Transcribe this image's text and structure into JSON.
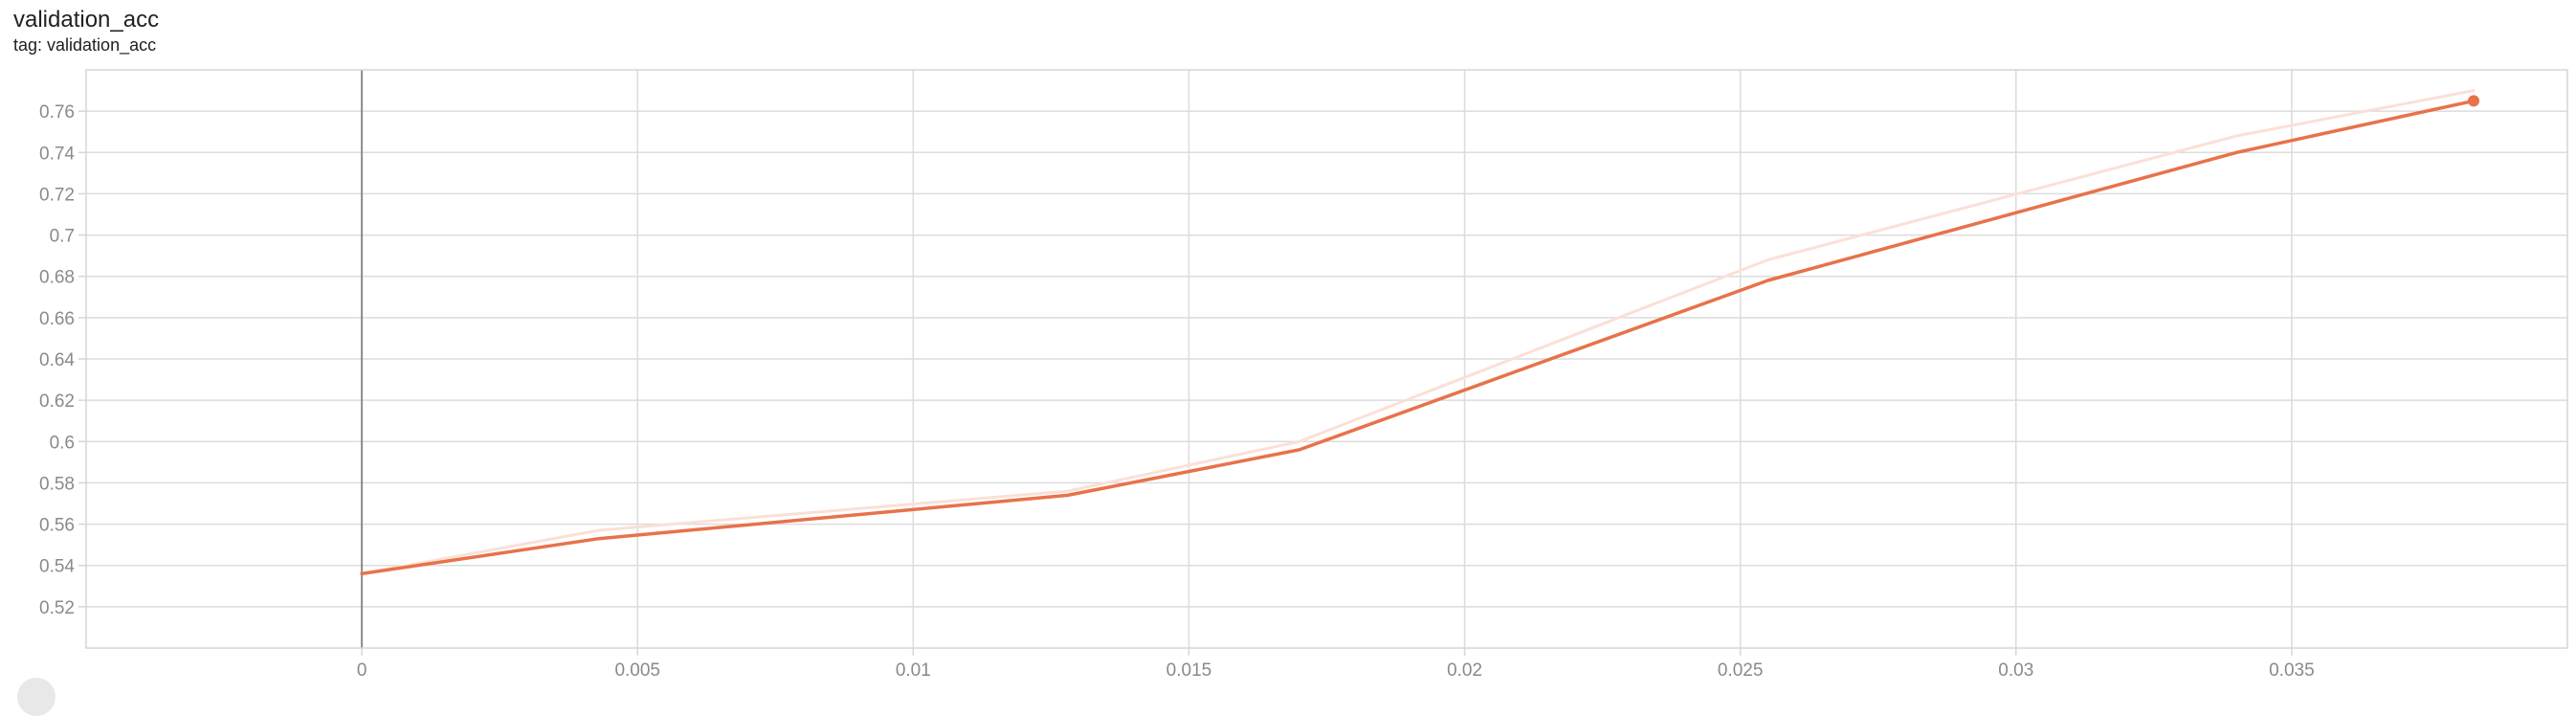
{
  "header": {
    "title": "validation_acc",
    "tag": "tag: validation_acc"
  },
  "chart_data": {
    "type": "line",
    "title": "validation_acc",
    "subtitle": "tag: validation_acc",
    "xlabel": "",
    "ylabel": "",
    "xlim": [
      -0.005,
      0.04
    ],
    "ylim": [
      0.5,
      0.78
    ],
    "x_ticks": [
      "0",
      "0.005",
      "0.01",
      "0.015",
      "0.02",
      "0.025",
      "0.03",
      "0.035"
    ],
    "y_ticks": [
      "0.52",
      "0.54",
      "0.56",
      "0.58",
      "0.6",
      "0.62",
      "0.64",
      "0.66",
      "0.68",
      "0.7",
      "0.72",
      "0.74",
      "0.76"
    ],
    "grid": true,
    "series": [
      {
        "role": "raw",
        "color": "#fbe0d6",
        "x": [
          0,
          0.0043,
          0.0128,
          0.017,
          0.0255,
          0.034,
          0.0383
        ],
        "y": [
          0.536,
          0.557,
          0.576,
          0.6,
          0.688,
          0.748,
          0.77
        ]
      },
      {
        "role": "smoothed",
        "color": "#e8724a",
        "x": [
          0,
          0.0043,
          0.0128,
          0.017,
          0.0255,
          0.034,
          0.0383
        ],
        "y": [
          0.536,
          0.553,
          0.574,
          0.596,
          0.678,
          0.74,
          0.765
        ]
      }
    ],
    "colors": {
      "grid": "#dcdcdc",
      "zero_axis": "#8c8c8c",
      "frame": "#d6d6d6",
      "tick_text": "#8a8a8a"
    }
  }
}
